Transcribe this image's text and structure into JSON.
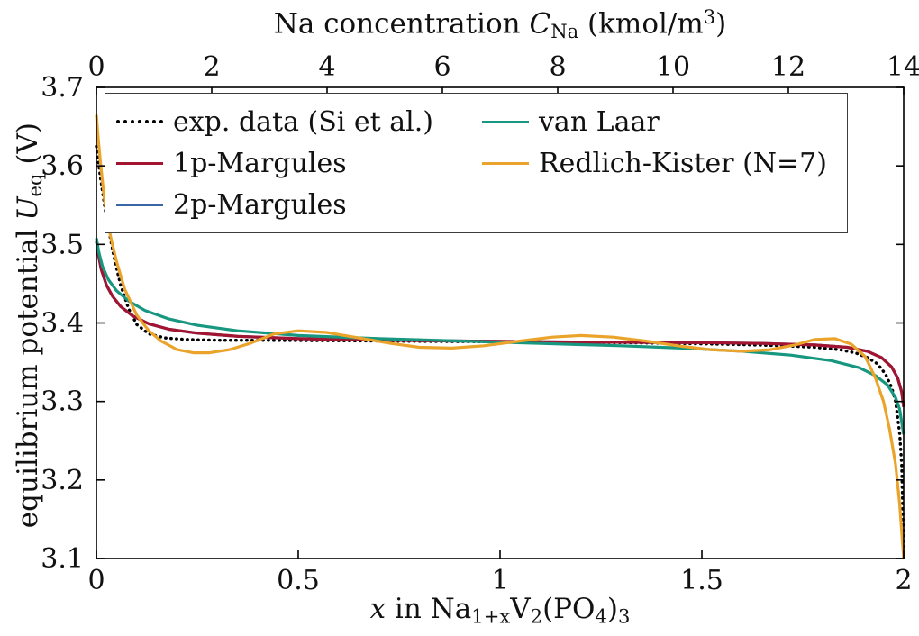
{
  "figure": {
    "background": "#ffffff",
    "axis_color": "#000000",
    "tick_label_color": "#111111"
  },
  "chart_data": {
    "type": "line",
    "title": "",
    "grid": false,
    "legend_position": "north-west",
    "legend_columns": 2,
    "xlim": [
      0,
      2
    ],
    "ylim": [
      3.1,
      3.7
    ],
    "top_xlim": [
      0,
      14
    ],
    "x_ticks": {
      "values": [
        0,
        0.5,
        1,
        1.5,
        2
      ],
      "labels": [
        "0",
        "0.5",
        "1",
        "1.5",
        "2"
      ]
    },
    "y_ticks": {
      "values": [
        3.1,
        3.2,
        3.3,
        3.4,
        3.5,
        3.6,
        3.7
      ],
      "labels": [
        "3.1",
        "3.2",
        "3.3",
        "3.4",
        "3.5",
        "3.6",
        "3.7"
      ]
    },
    "top_x_ticks": {
      "values": [
        0,
        2,
        4,
        6,
        8,
        10,
        12,
        14
      ],
      "labels": [
        "0",
        "2",
        "4",
        "6",
        "8",
        "10",
        "12",
        "14"
      ]
    },
    "top_xlabel_segments": [
      {
        "t": "Na concentration "
      },
      {
        "t": "C",
        "it": true
      },
      {
        "t": "Na",
        "sub": true
      },
      {
        "t": " (kmol/m"
      },
      {
        "t": "3",
        "sup": true
      },
      {
        "t": ")"
      }
    ],
    "bottom_xlabel_segments": [
      {
        "t": "x",
        "it": true
      },
      {
        "t": " in Na"
      },
      {
        "t": "1+x",
        "sub": true
      },
      {
        "t": "V"
      },
      {
        "t": "2",
        "sub": true
      },
      {
        "t": "(PO"
      },
      {
        "t": "4",
        "sub": true
      },
      {
        "t": ")"
      },
      {
        "t": "3",
        "sub": true
      }
    ],
    "ylabel_segments": [
      {
        "t": "equilibrium potential "
      },
      {
        "t": "U",
        "it": true
      },
      {
        "t": "eq",
        "sub": true
      },
      {
        "t": " (V)"
      }
    ],
    "draw_order": [
      "exp. data (Si et al.)",
      "2p-Margules",
      "1p-Margules",
      "van Laar",
      "Redlich-Kister (N=7)"
    ],
    "series": [
      {
        "name": "exp. data (Si et al.)",
        "color": "#000000",
        "style": "dotted",
        "x": [
          0,
          0.005,
          0.01,
          0.02,
          0.03,
          0.045,
          0.06,
          0.08,
          0.1,
          0.13,
          0.17,
          0.22,
          0.3,
          0.4,
          0.55,
          0.7,
          0.85,
          1.0,
          1.15,
          1.3,
          1.45,
          1.6,
          1.7,
          1.78,
          1.84,
          1.88,
          1.91,
          1.935,
          1.955,
          1.97,
          1.98,
          1.99,
          1.995,
          2.0
        ],
        "y": [
          3.625,
          3.605,
          3.585,
          3.55,
          3.52,
          3.48,
          3.448,
          3.418,
          3.398,
          3.386,
          3.381,
          3.379,
          3.378,
          3.378,
          3.3775,
          3.377,
          3.3765,
          3.376,
          3.3755,
          3.375,
          3.374,
          3.3725,
          3.371,
          3.369,
          3.366,
          3.362,
          3.356,
          3.348,
          3.335,
          3.318,
          3.3,
          3.26,
          3.22,
          3.115
        ]
      },
      {
        "name": "1p-Margules",
        "color": "#A2142F",
        "style": "solid",
        "x": [
          0,
          0.005,
          0.012,
          0.025,
          0.04,
          0.06,
          0.09,
          0.13,
          0.18,
          0.25,
          0.35,
          0.5,
          0.7,
          0.9,
          1.1,
          1.3,
          1.5,
          1.65,
          1.78,
          1.86,
          1.91,
          1.945,
          1.97,
          1.985,
          1.995,
          2.0
        ],
        "y": [
          3.505,
          3.487,
          3.468,
          3.448,
          3.434,
          3.421,
          3.409,
          3.399,
          3.392,
          3.387,
          3.383,
          3.38,
          3.378,
          3.377,
          3.376,
          3.3755,
          3.375,
          3.374,
          3.372,
          3.369,
          3.364,
          3.356,
          3.344,
          3.33,
          3.312,
          3.293
        ]
      },
      {
        "name": "2p-Margules",
        "color": "#3A66A5",
        "style": "solid",
        "x": [
          0,
          0.005,
          0.012,
          0.025,
          0.04,
          0.06,
          0.09,
          0.13,
          0.18,
          0.25,
          0.35,
          0.5,
          0.7,
          0.9,
          1.1,
          1.3,
          1.5,
          1.65,
          1.78,
          1.86,
          1.91,
          1.945,
          1.97,
          1.985,
          1.995,
          2.0
        ],
        "y": [
          3.505,
          3.487,
          3.468,
          3.448,
          3.434,
          3.421,
          3.409,
          3.399,
          3.392,
          3.387,
          3.383,
          3.38,
          3.378,
          3.377,
          3.376,
          3.3755,
          3.375,
          3.374,
          3.372,
          3.369,
          3.364,
          3.356,
          3.344,
          3.33,
          3.312,
          3.293
        ]
      },
      {
        "name": "van Laar",
        "color": "#17977F",
        "style": "solid",
        "x": [
          0,
          0.006,
          0.015,
          0.03,
          0.05,
          0.08,
          0.12,
          0.18,
          0.25,
          0.35,
          0.5,
          0.7,
          0.9,
          1.1,
          1.3,
          1.45,
          1.6,
          1.72,
          1.82,
          1.89,
          1.93,
          1.96,
          1.98,
          1.99,
          2.0
        ],
        "y": [
          3.508,
          3.49,
          3.472,
          3.455,
          3.441,
          3.428,
          3.416,
          3.405,
          3.397,
          3.39,
          3.384,
          3.38,
          3.377,
          3.374,
          3.371,
          3.368,
          3.364,
          3.359,
          3.352,
          3.343,
          3.333,
          3.321,
          3.305,
          3.29,
          3.258
        ]
      },
      {
        "name": "Redlich-Kister (N=7)",
        "color": "#EBA42B",
        "style": "solid",
        "x": [
          0,
          0.004,
          0.01,
          0.02,
          0.035,
          0.05,
          0.07,
          0.1,
          0.13,
          0.16,
          0.2,
          0.24,
          0.28,
          0.33,
          0.38,
          0.44,
          0.5,
          0.57,
          0.65,
          0.73,
          0.8,
          0.88,
          0.96,
          1.05,
          1.13,
          1.2,
          1.28,
          1.36,
          1.44,
          1.52,
          1.6,
          1.67,
          1.73,
          1.78,
          1.83,
          1.87,
          1.905,
          1.93,
          1.95,
          1.965,
          1.98,
          1.99,
          2.0
        ],
        "y": [
          3.665,
          3.638,
          3.604,
          3.556,
          3.51,
          3.478,
          3.443,
          3.41,
          3.39,
          3.377,
          3.366,
          3.362,
          3.362,
          3.366,
          3.374,
          3.386,
          3.39,
          3.388,
          3.381,
          3.374,
          3.369,
          3.368,
          3.371,
          3.377,
          3.382,
          3.384,
          3.382,
          3.377,
          3.371,
          3.366,
          3.364,
          3.366,
          3.372,
          3.379,
          3.38,
          3.373,
          3.357,
          3.33,
          3.3,
          3.265,
          3.22,
          3.17,
          3.1
        ]
      }
    ]
  }
}
